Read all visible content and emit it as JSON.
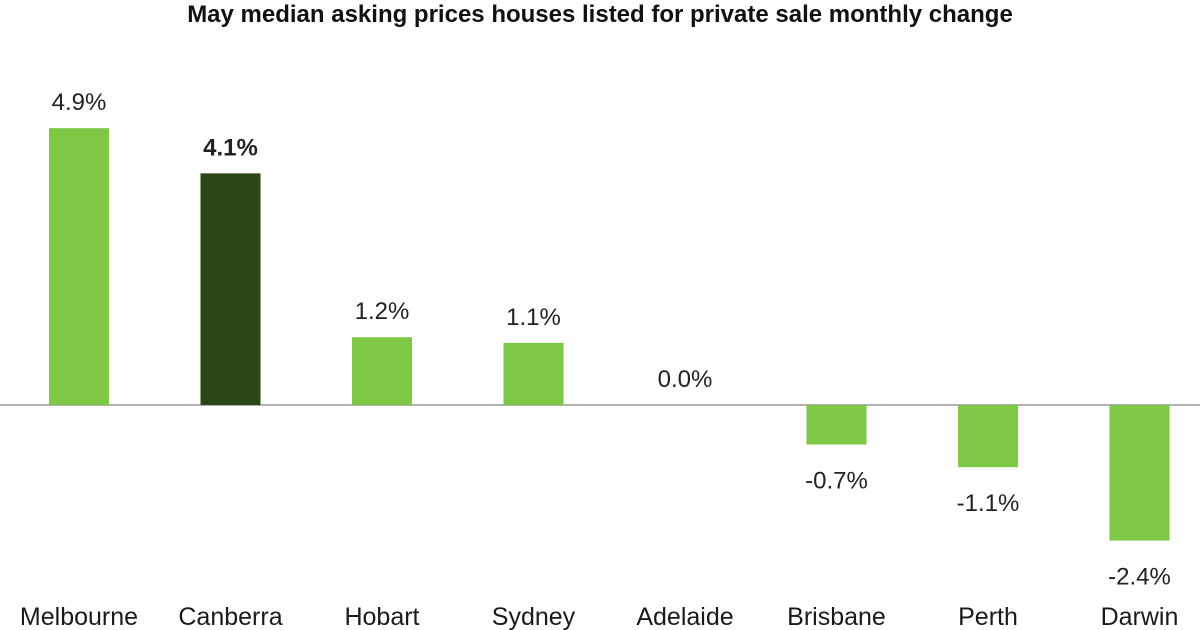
{
  "chart_data": {
    "type": "bar",
    "title": "May median asking prices houses listed for private sale monthly change",
    "xlabel": "",
    "ylabel": "",
    "categories": [
      "Melbourne",
      "Canberra",
      "Hobart",
      "Sydney",
      "Adelaide",
      "Brisbane",
      "Perth",
      "Darwin"
    ],
    "values": [
      4.9,
      4.1,
      1.2,
      1.1,
      0.0,
      -0.7,
      -1.1,
      -2.4
    ],
    "data_labels": [
      "4.9%",
      "4.1%",
      "1.2%",
      "1.1%",
      "0.0%",
      "-0.7%",
      "-1.1%",
      "-2.4%"
    ],
    "highlight_category": "Canberra",
    "ylim": [
      -2.4,
      4.9
    ],
    "grid": false,
    "legend": "none",
    "colors": {
      "bar": "#7ec845",
      "highlight": "#2b4716",
      "axis": "#999999"
    }
  }
}
